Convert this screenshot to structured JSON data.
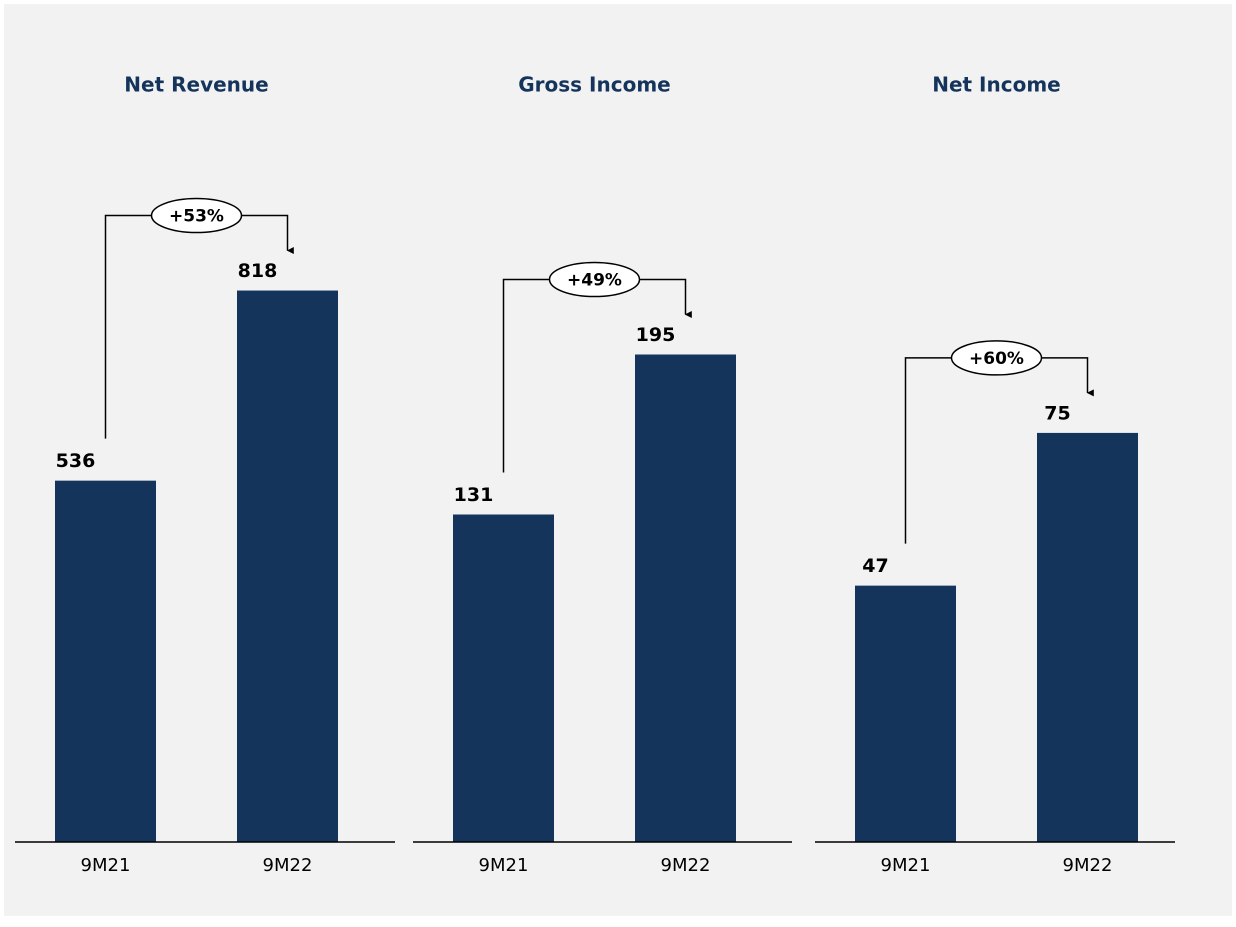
{
  "chart_data": [
    {
      "type": "bar",
      "title": "Net Revenue",
      "categories": [
        "9M21",
        "9M22"
      ],
      "values": [
        536,
        818
      ],
      "color": "#14345c",
      "ylim": [
        0,
        890
      ],
      "annotation": "+53%"
    },
    {
      "type": "bar",
      "title": "Gross Income",
      "categories": [
        "9M21",
        "9M22"
      ],
      "values": [
        131,
        195
      ],
      "color": "#14345c",
      "ylim": [
        0,
        240
      ],
      "annotation": "+49%"
    },
    {
      "type": "bar",
      "title": "Net Income",
      "categories": [
        "9M21",
        "9M22"
      ],
      "values": [
        47,
        75
      ],
      "color": "#14345c",
      "ylim": [
        0,
        110
      ],
      "annotation": "+60%"
    }
  ]
}
